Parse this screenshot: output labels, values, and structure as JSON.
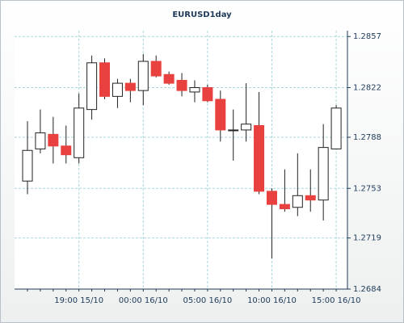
{
  "chart_data": {
    "type": "candlestick",
    "title": "EURUSD1day",
    "categories": [
      null,
      null,
      null,
      null,
      "19:00 15/10",
      null,
      null,
      null,
      null,
      "00:00 16/10",
      null,
      null,
      null,
      null,
      "05:00 16/10",
      null,
      null,
      null,
      null,
      "10:00 16/10",
      null,
      null,
      null,
      null,
      "15:00 16/10"
    ],
    "open": [
      1.2758,
      1.278,
      1.279,
      1.2782,
      1.2774,
      1.2807,
      1.2839,
      1.2816,
      1.2825,
      1.282,
      1.284,
      1.2831,
      1.2827,
      1.2819,
      1.2822,
      1.2814,
      1.2793,
      1.2793,
      1.2796,
      1.2751,
      1.2742,
      1.274,
      1.2748,
      1.2745,
      1.278
    ],
    "high": [
      1.2799,
      1.2807,
      1.2802,
      1.2796,
      1.2818,
      1.2844,
      1.2842,
      1.2828,
      1.2828,
      1.2845,
      1.2844,
      1.2833,
      1.2832,
      1.2827,
      1.2824,
      1.282,
      1.2807,
      1.2825,
      1.2819,
      1.2753,
      1.2766,
      1.2777,
      1.2766,
      1.2797,
      1.281
    ],
    "low": [
      1.2749,
      1.2777,
      1.277,
      1.277,
      1.277,
      1.28,
      1.2814,
      1.2808,
      1.2812,
      1.281,
      1.2829,
      1.2824,
      1.2816,
      1.2812,
      1.2812,
      1.2785,
      1.2772,
      1.2785,
      1.2749,
      1.2705,
      1.2737,
      1.2734,
      1.2737,
      1.2731,
      1.278
    ],
    "close": [
      1.2779,
      1.2791,
      1.2782,
      1.2776,
      1.2808,
      1.2839,
      1.2816,
      1.2825,
      1.282,
      1.284,
      1.283,
      1.2825,
      1.282,
      1.2822,
      1.2813,
      1.2793,
      1.2793,
      1.2797,
      1.2751,
      1.2742,
      1.2739,
      1.2748,
      1.2745,
      1.2781,
      1.2808
    ],
    "up_color": "#ffffff",
    "down_color": "#e8413f",
    "ylim": [
      1.2684,
      1.2861
    ],
    "yticks": [
      1.2684,
      1.2719,
      1.2753,
      1.2788,
      1.2822,
      1.2857
    ],
    "y_axis_side": "right",
    "grid": true
  }
}
